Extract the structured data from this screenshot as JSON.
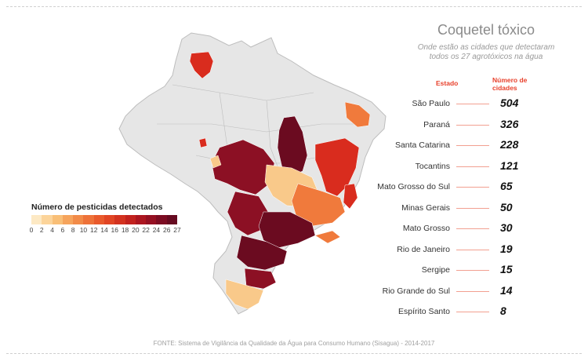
{
  "title": "Coquetel tóxico",
  "subtitle": "Onde estão as cidades que detectaram todos os 27 agrotóxicos na água",
  "table": {
    "header_state": "Estado",
    "header_count": "Número de cidades",
    "rows": [
      {
        "state": "São Paulo",
        "count": "504"
      },
      {
        "state": "Paraná",
        "count": "326"
      },
      {
        "state": "Santa Catarina",
        "count": "228"
      },
      {
        "state": "Tocantins",
        "count": "121"
      },
      {
        "state": "Mato Grosso do Sul",
        "count": "65"
      },
      {
        "state": "Minas Gerais",
        "count": "50"
      },
      {
        "state": "Mato Grosso",
        "count": "30"
      },
      {
        "state": "Rio de Janeiro",
        "count": "19"
      },
      {
        "state": "Sergipe",
        "count": "15"
      },
      {
        "state": "Rio Grande do Sul",
        "count": "14"
      },
      {
        "state": "Espírito Santo",
        "count": "8"
      }
    ]
  },
  "legend": {
    "title": "Número de pesticidas detectados",
    "ticks": [
      "0",
      "2",
      "4",
      "6",
      "8",
      "10",
      "12",
      "14",
      "16",
      "18",
      "20",
      "22",
      "24",
      "26",
      "27"
    ],
    "colors": [
      "#fde9c4",
      "#fcd49a",
      "#f9bf77",
      "#f6a45c",
      "#f28b48",
      "#ee7239",
      "#e95a2c",
      "#e14524",
      "#d3321f",
      "#c2221e",
      "#ac1620",
      "#951022",
      "#7c0c22",
      "#660a20"
    ]
  },
  "map_colors": {
    "none": "#e6e6e6",
    "border": "#bdbdbd",
    "darkest": "#6b0b20",
    "dark": "#8c1024",
    "red": "#d92c1e",
    "orange": "#f07a3c",
    "light": "#f9c98a"
  },
  "source": "FONTE: Sistema de Vigilância da Qualidade da Água para Consumo Humano (Sisagua) - 2014-2017"
}
